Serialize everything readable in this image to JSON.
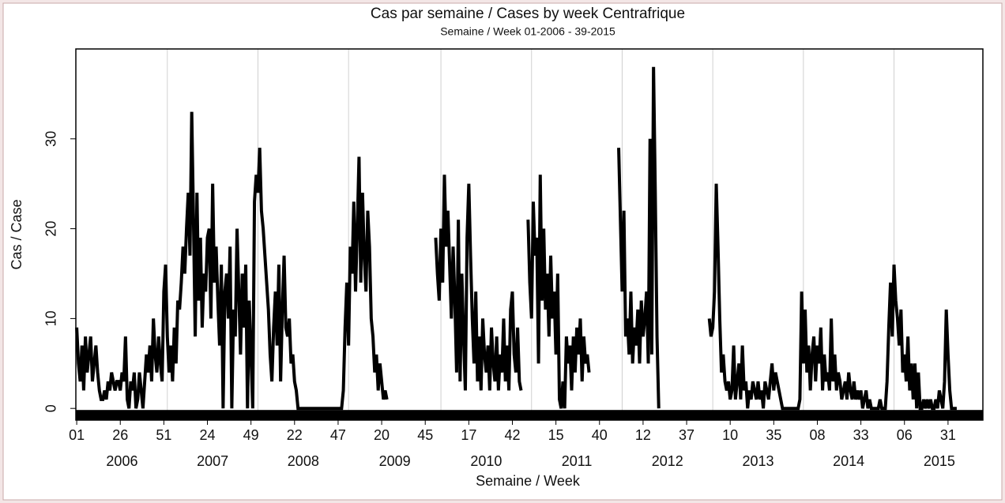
{
  "chart_data": {
    "type": "line",
    "title": "Cas par semaine / Cases by week Centrafrique",
    "subtitle": "Semaine / Week 01-2006 - 39-2015",
    "xlabel": "Semaine / Week",
    "ylabel": "Cas / Case",
    "color": "#000000",
    "grid": true,
    "xlim": [
      0.5,
      521
    ],
    "ylim": [
      -1.3,
      40
    ],
    "yticks": [
      0,
      10,
      20,
      30
    ],
    "xticks": [
      {
        "value": 1,
        "label": "01"
      },
      {
        "value": 26,
        "label": "26"
      },
      {
        "value": 51,
        "label": "51"
      },
      {
        "value": 76,
        "label": "24"
      },
      {
        "value": 101,
        "label": "49"
      },
      {
        "value": 126,
        "label": "22"
      },
      {
        "value": 151,
        "label": "47"
      },
      {
        "value": 176,
        "label": "20"
      },
      {
        "value": 201,
        "label": "45"
      },
      {
        "value": 226,
        "label": "17"
      },
      {
        "value": 251,
        "label": "42"
      },
      {
        "value": 276,
        "label": "15"
      },
      {
        "value": 301,
        "label": "40"
      },
      {
        "value": 326,
        "label": "12"
      },
      {
        "value": 351,
        "label": "37"
      },
      {
        "value": 376,
        "label": "10"
      },
      {
        "value": 401,
        "label": "35"
      },
      {
        "value": 426,
        "label": "08"
      },
      {
        "value": 451,
        "label": "33"
      },
      {
        "value": 476,
        "label": "06"
      },
      {
        "value": 501,
        "label": "31"
      }
    ],
    "years": [
      {
        "value": 1,
        "label": "2006"
      },
      {
        "value": 53,
        "label": "2007"
      },
      {
        "value": 105,
        "label": "2008"
      },
      {
        "value": 157,
        "label": "2009"
      },
      {
        "value": 210,
        "label": "2010"
      },
      {
        "value": 262,
        "label": "2011"
      },
      {
        "value": 314,
        "label": "2012"
      },
      {
        "value": 366,
        "label": "2013"
      },
      {
        "value": 418,
        "label": "2014"
      },
      {
        "value": 470,
        "label": "2015"
      }
    ],
    "x": [
      1,
      2,
      3,
      4,
      5,
      6,
      7,
      8,
      9,
      10,
      11,
      12,
      13,
      14,
      15,
      16,
      17,
      18,
      19,
      20,
      21,
      22,
      23,
      24,
      25,
      26,
      27,
      28,
      29,
      30,
      31,
      32,
      33,
      34,
      35,
      36,
      37,
      38,
      39,
      40,
      41,
      42,
      43,
      44,
      45,
      46,
      47,
      48,
      49,
      50,
      51,
      52,
      53,
      54,
      55,
      56,
      57,
      58,
      59,
      60,
      61,
      62,
      63,
      64,
      65,
      66,
      67,
      68,
      69,
      70,
      71,
      72,
      73,
      74,
      75,
      76,
      77,
      78,
      79,
      80,
      81,
      82,
      83,
      84,
      85,
      86,
      87,
      88,
      89,
      90,
      91,
      92,
      93,
      94,
      95,
      96,
      97,
      98,
      99,
      100,
      101,
      102,
      103,
      104,
      105,
      106,
      107,
      108,
      109,
      110,
      111,
      112,
      113,
      114,
      115,
      116,
      117,
      118,
      119,
      120,
      121,
      122,
      123,
      124,
      125,
      126,
      127,
      128,
      129,
      130,
      131,
      132,
      133,
      134,
      135,
      136,
      137,
      138,
      139,
      140,
      141,
      142,
      143,
      144,
      145,
      146,
      147,
      148,
      149,
      150,
      151,
      152,
      153,
      154,
      155,
      156,
      157,
      158,
      159,
      160,
      161,
      162,
      163,
      164,
      165,
      166,
      167,
      168,
      169,
      170,
      171,
      172,
      173,
      174,
      175,
      176,
      177,
      178,
      179,
      180,
      181,
      182,
      183,
      184,
      185,
      186,
      187,
      188,
      189,
      190,
      191,
      192,
      193,
      194,
      195,
      196,
      197,
      198,
      199,
      200,
      201,
      202,
      203,
      204,
      205,
      206,
      207,
      208,
      209,
      210,
      211,
      212,
      213,
      214,
      215,
      216,
      217,
      218,
      219,
      220,
      221,
      222,
      223,
      224,
      225,
      226,
      227,
      228,
      229,
      230,
      231,
      232,
      233,
      234,
      235,
      236,
      237,
      238,
      239,
      240,
      241,
      242,
      243,
      244,
      245,
      246,
      247,
      248,
      249,
      250,
      251,
      252,
      253,
      254,
      255,
      256,
      257,
      258,
      259,
      260,
      261,
      262,
      263,
      264,
      265,
      266,
      267,
      268,
      269,
      270,
      271,
      272,
      273,
      274,
      275,
      276,
      277,
      278,
      279,
      280,
      281,
      282,
      283,
      284,
      285,
      286,
      287,
      288,
      289,
      290,
      291,
      292,
      293,
      294,
      295,
      296,
      297,
      298,
      299,
      300,
      301,
      302,
      303,
      304,
      305,
      306,
      307,
      308,
      309,
      310,
      311,
      312,
      313,
      314,
      315,
      316,
      317,
      318,
      319,
      320,
      321,
      322,
      323,
      324,
      325,
      326,
      327,
      328,
      329,
      330,
      331,
      332,
      333,
      334,
      335,
      336,
      337,
      338,
      339,
      340,
      341,
      342,
      343,
      344,
      345,
      346,
      347,
      348,
      349,
      350,
      351,
      352,
      353,
      354,
      355,
      356,
      357,
      358,
      359,
      360,
      361,
      362,
      363,
      364,
      365,
      366,
      367,
      368,
      369,
      370,
      371,
      372,
      373,
      374,
      375,
      376,
      377,
      378,
      379,
      380,
      381,
      382,
      383,
      384,
      385,
      386,
      387,
      388,
      389,
      390,
      391,
      392,
      393,
      394,
      395,
      396,
      397,
      398,
      399,
      400,
      401,
      402,
      403,
      404,
      405,
      406,
      407,
      408,
      409,
      410,
      411,
      412,
      413,
      414,
      415,
      416,
      417,
      418,
      419,
      420,
      421,
      422,
      423,
      424,
      425,
      426,
      427,
      428,
      429,
      430,
      431,
      432,
      433,
      434,
      435,
      436,
      437,
      438,
      439,
      440,
      441,
      442,
      443,
      444,
      445,
      446,
      447,
      448,
      449,
      450,
      451,
      452,
      453,
      454,
      455,
      456,
      457,
      458,
      459,
      460,
      461,
      462,
      463,
      464,
      465,
      466,
      467,
      468,
      469,
      470,
      471,
      472,
      473,
      474,
      475,
      476,
      477,
      478,
      479,
      480,
      481,
      482,
      483,
      484,
      485,
      486,
      487,
      488,
      489,
      490,
      491,
      492,
      493,
      494,
      495,
      496,
      497,
      498,
      499,
      500,
      501,
      502,
      503,
      504,
      505,
      506
    ],
    "values": [
      9,
      5,
      3,
      7,
      2,
      8,
      4,
      6,
      8,
      3,
      5,
      7,
      4,
      2,
      1,
      1,
      2,
      1,
      3,
      2,
      4,
      3,
      2,
      3,
      3,
      2,
      4,
      3,
      8,
      1,
      0,
      3,
      2,
      4,
      0,
      1,
      4,
      2,
      0,
      3,
      6,
      4,
      7,
      3,
      10,
      6,
      4,
      8,
      5,
      3,
      13,
      16,
      8,
      4,
      7,
      3,
      9,
      5,
      12,
      11,
      14,
      18,
      15,
      20,
      24,
      17,
      33,
      21,
      8,
      24,
      12,
      19,
      9,
      15,
      13,
      19,
      20,
      10,
      25,
      14,
      18,
      12,
      7,
      16,
      0,
      13,
      15,
      10,
      18,
      0,
      11,
      8,
      20,
      13,
      6,
      15,
      9,
      16,
      0,
      12,
      6,
      0,
      23,
      26,
      24,
      29,
      22,
      20,
      17,
      14,
      11,
      6,
      3,
      9,
      13,
      7,
      16,
      3,
      11,
      17,
      9,
      8,
      10,
      5,
      6,
      3,
      2,
      0,
      0,
      0,
      0,
      0,
      0,
      0,
      0,
      0,
      0,
      0,
      0,
      0,
      0,
      0,
      0,
      0,
      0,
      0,
      0,
      0,
      0,
      0,
      0,
      0,
      0,
      2,
      9,
      14,
      7,
      18,
      15,
      23,
      13,
      20,
      28,
      14,
      24,
      17,
      13,
      22,
      18,
      10,
      8,
      4,
      6,
      2,
      5,
      3,
      1,
      2,
      1,
      null,
      null,
      null,
      null,
      null,
      null,
      null,
      null,
      null,
      null,
      null,
      null,
      null,
      null,
      null,
      null,
      null,
      null,
      null,
      null,
      null,
      null,
      null,
      null,
      null,
      null,
      null,
      19,
      15,
      12,
      20,
      14,
      26,
      18,
      22,
      16,
      10,
      18,
      12,
      4,
      21,
      3,
      15,
      8,
      2,
      19,
      25,
      17,
      10,
      5,
      13,
      3,
      8,
      2,
      10,
      6,
      4,
      7,
      2,
      9,
      5,
      3,
      8,
      2,
      6,
      4,
      10,
      3,
      7,
      2,
      11,
      13,
      6,
      4,
      9,
      3,
      2,
      null,
      null,
      null,
      21,
      14,
      10,
      23,
      17,
      19,
      5,
      26,
      12,
      20,
      11,
      15,
      8,
      17,
      10,
      13,
      6,
      15,
      1,
      0,
      3,
      0,
      8,
      5,
      7,
      2,
      8,
      4,
      9,
      6,
      10,
      3,
      8,
      5,
      6,
      4,
      null,
      null,
      null,
      null,
      null,
      null,
      null,
      null,
      null,
      null,
      null,
      null,
      null,
      null,
      null,
      null,
      29,
      21,
      13,
      22,
      8,
      10,
      6,
      13,
      5,
      9,
      7,
      11,
      5,
      12,
      8,
      10,
      13,
      5,
      30,
      6,
      38,
      24,
      8,
      0,
      null,
      null,
      null,
      null,
      null,
      null,
      null,
      null,
      null,
      null,
      null,
      null,
      null,
      null,
      null,
      null,
      null,
      null,
      null,
      null,
      null,
      null,
      null,
      null,
      null,
      null,
      null,
      null,
      10,
      8,
      9,
      13,
      25,
      18,
      10,
      4,
      6,
      3,
      2,
      3,
      1,
      2,
      7,
      1,
      3,
      5,
      1,
      7,
      2,
      3,
      0,
      2,
      1,
      3,
      2,
      1,
      3,
      1,
      2,
      0,
      3,
      2,
      1,
      3,
      5,
      2,
      4,
      3,
      2,
      1,
      0,
      0,
      0,
      0,
      0,
      0,
      0,
      0,
      0,
      0,
      1,
      13,
      5,
      11,
      4,
      7,
      2,
      6,
      8,
      3,
      7,
      5,
      9,
      2,
      6,
      3,
      4,
      2,
      10,
      3,
      6,
      2,
      4,
      3,
      1,
      2,
      3,
      1,
      4,
      2,
      1,
      3,
      1,
      2,
      1,
      2,
      0,
      1,
      2,
      0,
      1,
      0,
      0,
      0,
      0,
      0,
      1,
      0,
      0,
      0,
      3,
      9,
      14,
      8,
      16,
      12,
      10,
      7,
      11,
      4,
      6,
      3,
      8,
      2,
      5,
      1,
      5,
      0,
      4,
      0,
      0,
      1,
      0,
      1,
      0,
      1,
      0,
      0,
      1,
      0,
      2,
      1,
      0,
      3,
      11,
      6,
      2,
      0,
      0,
      0,
      0
    ]
  }
}
